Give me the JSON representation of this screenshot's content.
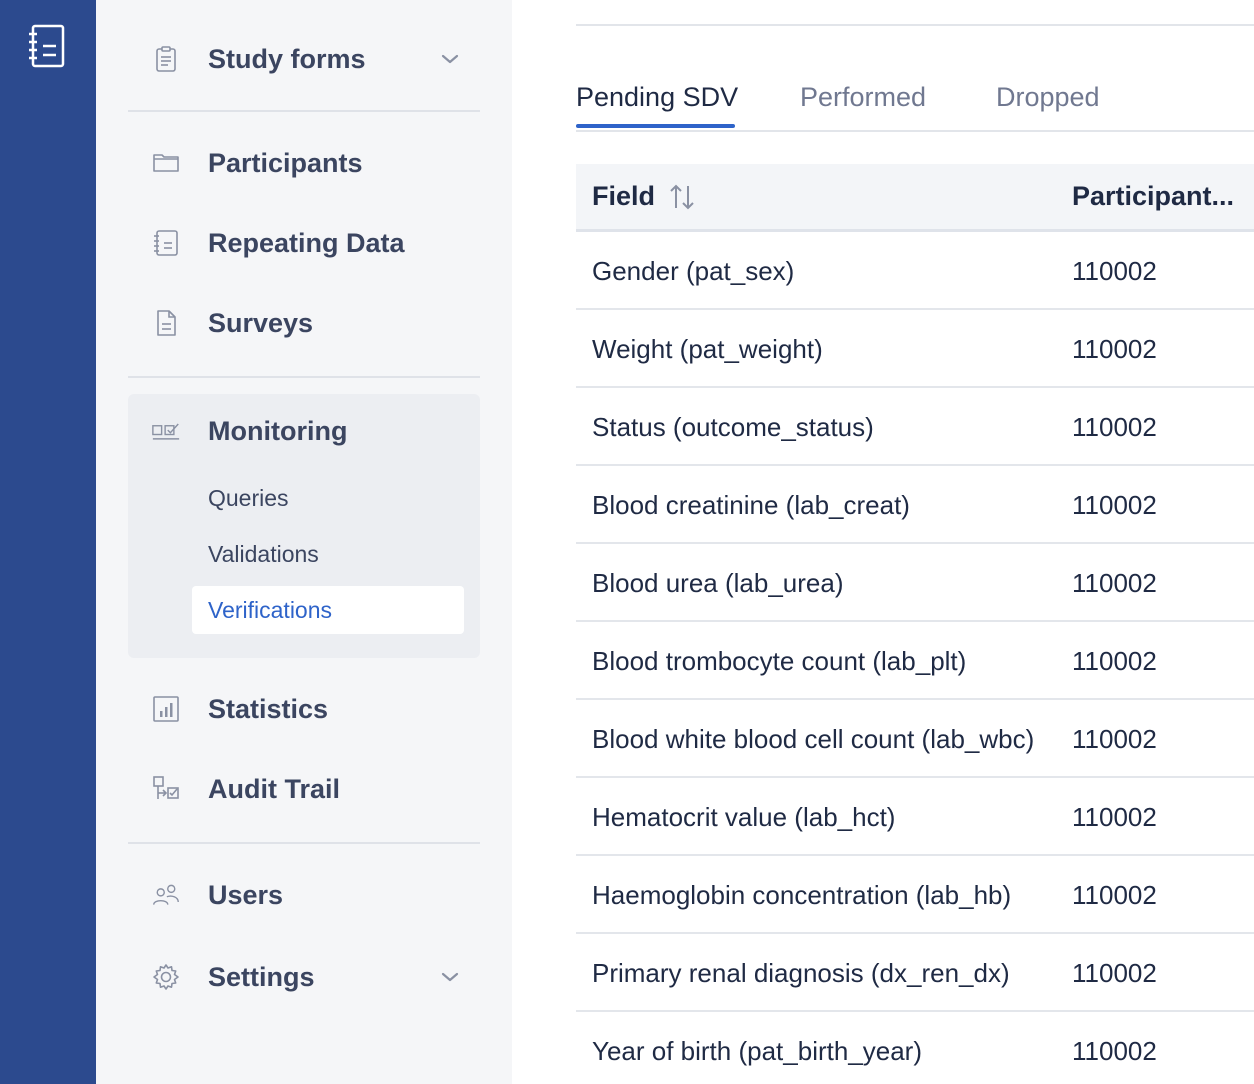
{
  "sidebar": {
    "study_forms": "Study forms",
    "participants": "Participants",
    "repeating_data": "Repeating Data",
    "surveys": "Surveys",
    "monitoring": "Monitoring",
    "monitoring_items": [
      "Queries",
      "Validations",
      "Verifications"
    ],
    "statistics": "Statistics",
    "audit_trail": "Audit Trail",
    "users": "Users",
    "settings": "Settings"
  },
  "tabs": [
    "Pending SDV",
    "Performed",
    "Dropped"
  ],
  "active_tab": "Pending SDV",
  "table": {
    "columns": [
      "Field",
      "Participant..."
    ],
    "rows": [
      [
        "Gender (pat_sex)",
        "110002"
      ],
      [
        "Weight (pat_weight)",
        "110002"
      ],
      [
        "Status (outcome_status)",
        "110002"
      ],
      [
        "Blood creatinine (lab_creat)",
        "110002"
      ],
      [
        "Blood urea (lab_urea)",
        "110002"
      ],
      [
        "Blood trombocyte count (lab_plt)",
        "110002"
      ],
      [
        "Blood white blood cell count (lab_wbc)",
        "110002"
      ],
      [
        "Hematocrit value (lab_hct)",
        "110002"
      ],
      [
        "Haemoglobin concentration (lab_hb)",
        "110002"
      ],
      [
        "Primary renal diagnosis (dx_ren_dx)",
        "110002"
      ],
      [
        "Year of birth (pat_birth_year)",
        "110002"
      ]
    ]
  },
  "colors": {
    "rail": "#2c4a8e",
    "accent": "#2e63c9",
    "sidebar_bg": "#f5f6f8"
  }
}
